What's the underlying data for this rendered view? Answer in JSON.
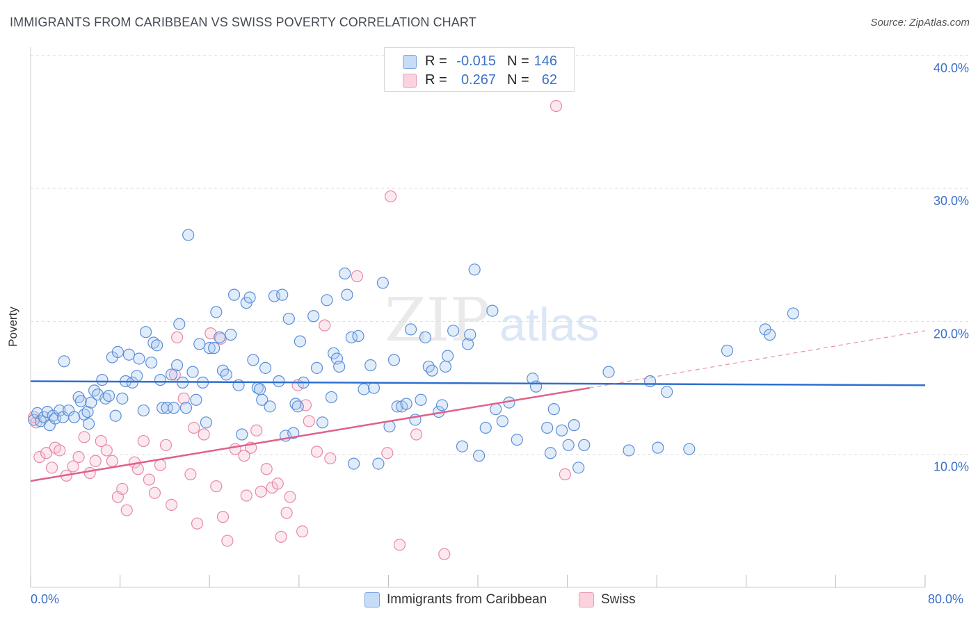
{
  "header": {
    "title": "IMMIGRANTS FROM CARIBBEAN VS SWISS POVERTY CORRELATION CHART",
    "source": "Source: ZipAtlas.com"
  },
  "watermark": {
    "zip": "ZIP",
    "atlas": "atlas"
  },
  "axes": {
    "x_min_label": "0.0%",
    "x_max_label": "80.0%",
    "y_title": "Poverty",
    "y_ticks": [
      "10.0%",
      "20.0%",
      "30.0%",
      "40.0%"
    ]
  },
  "legend_top": {
    "rows": [
      {
        "r_label": "R =",
        "r_value": "-0.015",
        "n_label": "N =",
        "n_value": "146",
        "color": "#9ec3f0"
      },
      {
        "r_label": "R =",
        "r_value": "0.267",
        "n_label": "N =",
        "n_value": "62",
        "color": "#f5b6c8"
      }
    ]
  },
  "legend_bottom": {
    "items": [
      {
        "label": "Immigrants from Caribbean",
        "color": "#9ec3f0"
      },
      {
        "label": "Swiss",
        "color": "#f5b6c8"
      }
    ]
  },
  "colors": {
    "blue_fill": "#a9c9f2",
    "blue_stroke": "#5b8fd6",
    "blue_line": "#2f6fcf",
    "pink_fill": "#f7c0d0",
    "pink_stroke": "#e58aa6",
    "pink_line": "#e0608a",
    "tick_label": "#3a70c8"
  },
  "chart_data": {
    "type": "scatter",
    "xlim": [
      0,
      80
    ],
    "ylim": [
      0,
      42
    ],
    "grid": "horizontal dashed at y ticks",
    "series": [
      {
        "name": "Immigrants from Caribbean",
        "trend": {
          "x": [
            0,
            80
          ],
          "y": [
            15.5,
            15.2
          ]
        },
        "points": [
          [
            0.3,
            12.6
          ],
          [
            0.6,
            13.1
          ],
          [
            0.9,
            12.5
          ],
          [
            1.2,
            12.8
          ],
          [
            1.5,
            13.2
          ],
          [
            1.7,
            12.2
          ],
          [
            2.0,
            12.9
          ],
          [
            2.2,
            12.7
          ],
          [
            2.6,
            13.3
          ],
          [
            2.9,
            12.8
          ],
          [
            3.0,
            17.0
          ],
          [
            3.4,
            13.3
          ],
          [
            3.9,
            12.8
          ],
          [
            4.3,
            14.3
          ],
          [
            4.5,
            14.0
          ],
          [
            4.8,
            13.0
          ],
          [
            5.1,
            13.2
          ],
          [
            5.2,
            12.3
          ],
          [
            5.4,
            13.9
          ],
          [
            5.7,
            14.8
          ],
          [
            6.0,
            14.5
          ],
          [
            6.4,
            15.6
          ],
          [
            6.7,
            14.2
          ],
          [
            7.0,
            14.4
          ],
          [
            7.3,
            17.3
          ],
          [
            7.6,
            12.9
          ],
          [
            7.8,
            17.7
          ],
          [
            8.2,
            14.2
          ],
          [
            8.5,
            15.5
          ],
          [
            8.8,
            17.5
          ],
          [
            9.1,
            15.4
          ],
          [
            9.5,
            15.9
          ],
          [
            9.7,
            17.2
          ],
          [
            10.1,
            13.3
          ],
          [
            10.3,
            19.2
          ],
          [
            10.8,
            16.9
          ],
          [
            11.0,
            18.4
          ],
          [
            11.3,
            18.2
          ],
          [
            11.6,
            15.6
          ],
          [
            11.8,
            13.5
          ],
          [
            12.2,
            13.5
          ],
          [
            12.6,
            16.0
          ],
          [
            12.8,
            13.5
          ],
          [
            13.1,
            16.7
          ],
          [
            13.3,
            19.8
          ],
          [
            13.6,
            15.4
          ],
          [
            13.9,
            13.5
          ],
          [
            14.1,
            26.5
          ],
          [
            14.5,
            16.2
          ],
          [
            14.8,
            14.1
          ],
          [
            15.1,
            18.3
          ],
          [
            15.4,
            15.4
          ],
          [
            15.7,
            12.4
          ],
          [
            16.0,
            18.0
          ],
          [
            16.4,
            18.0
          ],
          [
            16.6,
            20.7
          ],
          [
            16.9,
            18.8
          ],
          [
            17.2,
            16.3
          ],
          [
            17.5,
            16.0
          ],
          [
            17.9,
            19.0
          ],
          [
            18.2,
            22.0
          ],
          [
            18.6,
            15.2
          ],
          [
            18.9,
            11.5
          ],
          [
            19.3,
            21.4
          ],
          [
            19.6,
            21.8
          ],
          [
            19.9,
            17.1
          ],
          [
            20.3,
            15.0
          ],
          [
            20.5,
            14.9
          ],
          [
            20.7,
            14.1
          ],
          [
            21.0,
            16.5
          ],
          [
            21.4,
            13.6
          ],
          [
            21.8,
            21.9
          ],
          [
            22.2,
            15.5
          ],
          [
            22.5,
            22.0
          ],
          [
            22.8,
            11.4
          ],
          [
            23.1,
            20.2
          ],
          [
            23.5,
            11.6
          ],
          [
            23.7,
            13.8
          ],
          [
            23.9,
            13.6
          ],
          [
            24.1,
            18.5
          ],
          [
            24.4,
            15.4
          ],
          [
            25.3,
            20.4
          ],
          [
            25.6,
            16.5
          ],
          [
            26.1,
            12.4
          ],
          [
            26.5,
            21.6
          ],
          [
            26.9,
            14.3
          ],
          [
            27.1,
            17.6
          ],
          [
            27.4,
            17.2
          ],
          [
            27.6,
            16.6
          ],
          [
            28.1,
            23.6
          ],
          [
            28.3,
            22.0
          ],
          [
            28.7,
            18.8
          ],
          [
            28.9,
            9.3
          ],
          [
            29.3,
            18.9
          ],
          [
            29.8,
            14.9
          ],
          [
            30.4,
            16.7
          ],
          [
            30.7,
            15.0
          ],
          [
            31.1,
            9.3
          ],
          [
            31.5,
            22.9
          ],
          [
            32.1,
            12.1
          ],
          [
            32.5,
            17.1
          ],
          [
            32.8,
            13.6
          ],
          [
            33.2,
            13.6
          ],
          [
            33.6,
            13.8
          ],
          [
            34.0,
            19.4
          ],
          [
            34.4,
            12.6
          ],
          [
            34.9,
            14.1
          ],
          [
            35.3,
            18.8
          ],
          [
            35.6,
            16.6
          ],
          [
            35.9,
            16.3
          ],
          [
            36.5,
            13.2
          ],
          [
            36.8,
            13.7
          ],
          [
            37.1,
            16.6
          ],
          [
            37.3,
            17.4
          ],
          [
            37.8,
            19.3
          ],
          [
            38.6,
            10.6
          ],
          [
            39.1,
            18.3
          ],
          [
            39.3,
            19.0
          ],
          [
            39.7,
            23.9
          ],
          [
            40.1,
            9.9
          ],
          [
            40.7,
            12.0
          ],
          [
            41.3,
            20.8
          ],
          [
            41.6,
            13.4
          ],
          [
            42.2,
            12.5
          ],
          [
            42.8,
            13.9
          ],
          [
            43.5,
            11.1
          ],
          [
            44.9,
            15.7
          ],
          [
            45.2,
            15.1
          ],
          [
            46.2,
            12.0
          ],
          [
            46.5,
            10.1
          ],
          [
            46.8,
            13.4
          ],
          [
            47.5,
            11.8
          ],
          [
            48.1,
            10.7
          ],
          [
            48.6,
            12.2
          ],
          [
            49.0,
            9.0
          ],
          [
            49.5,
            10.7
          ],
          [
            51.7,
            16.2
          ],
          [
            53.5,
            10.3
          ],
          [
            55.4,
            15.5
          ],
          [
            56.1,
            10.5
          ],
          [
            56.9,
            14.7
          ],
          [
            58.9,
            10.4
          ],
          [
            62.3,
            17.8
          ],
          [
            65.7,
            19.4
          ],
          [
            66.1,
            19.0
          ],
          [
            68.2,
            20.6
          ]
        ]
      },
      {
        "name": "Swiss",
        "trend": {
          "x": [
            0,
            50
          ],
          "y": [
            8.0,
            15.0
          ]
        },
        "trend_extension": {
          "x": [
            50,
            80
          ],
          "y": [
            15.0,
            19.3
          ]
        },
        "points": [
          [
            0.3,
            12.8
          ],
          [
            0.5,
            12.4
          ],
          [
            0.8,
            9.8
          ],
          [
            1.4,
            10.1
          ],
          [
            1.9,
            9.0
          ],
          [
            2.2,
            10.5
          ],
          [
            2.6,
            10.3
          ],
          [
            3.2,
            8.4
          ],
          [
            3.8,
            9.1
          ],
          [
            4.3,
            9.8
          ],
          [
            4.8,
            11.3
          ],
          [
            5.3,
            8.6
          ],
          [
            5.8,
            9.5
          ],
          [
            6.3,
            11.0
          ],
          [
            6.8,
            10.3
          ],
          [
            7.3,
            9.5
          ],
          [
            7.8,
            6.8
          ],
          [
            8.2,
            7.4
          ],
          [
            8.6,
            5.8
          ],
          [
            9.3,
            9.4
          ],
          [
            9.6,
            8.9
          ],
          [
            10.1,
            11.0
          ],
          [
            10.6,
            8.1
          ],
          [
            11.1,
            7.1
          ],
          [
            11.6,
            9.2
          ],
          [
            12.1,
            10.7
          ],
          [
            12.6,
            6.2
          ],
          [
            12.9,
            16.0
          ],
          [
            13.1,
            18.8
          ],
          [
            13.7,
            14.2
          ],
          [
            14.3,
            8.5
          ],
          [
            14.6,
            12.0
          ],
          [
            14.9,
            4.8
          ],
          [
            15.5,
            11.5
          ],
          [
            16.1,
            19.1
          ],
          [
            16.6,
            7.6
          ],
          [
            17.0,
            18.7
          ],
          [
            17.2,
            5.3
          ],
          [
            17.6,
            3.5
          ],
          [
            18.3,
            10.4
          ],
          [
            19.1,
            9.9
          ],
          [
            19.3,
            6.9
          ],
          [
            19.7,
            10.5
          ],
          [
            20.2,
            11.8
          ],
          [
            20.6,
            7.2
          ],
          [
            21.1,
            8.9
          ],
          [
            21.6,
            7.5
          ],
          [
            22.1,
            7.8
          ],
          [
            22.4,
            3.8
          ],
          [
            22.9,
            5.6
          ],
          [
            23.2,
            6.8
          ],
          [
            23.9,
            15.2
          ],
          [
            24.3,
            4.2
          ],
          [
            24.6,
            13.7
          ],
          [
            24.9,
            12.5
          ],
          [
            25.6,
            10.2
          ],
          [
            26.3,
            19.7
          ],
          [
            26.8,
            9.7
          ],
          [
            29.2,
            23.4
          ],
          [
            31.9,
            10.1
          ],
          [
            32.2,
            29.4
          ],
          [
            33.0,
            3.2
          ],
          [
            34.5,
            11.5
          ],
          [
            37.0,
            2.5
          ],
          [
            47.0,
            36.2
          ],
          [
            47.8,
            8.5
          ]
        ]
      }
    ]
  }
}
